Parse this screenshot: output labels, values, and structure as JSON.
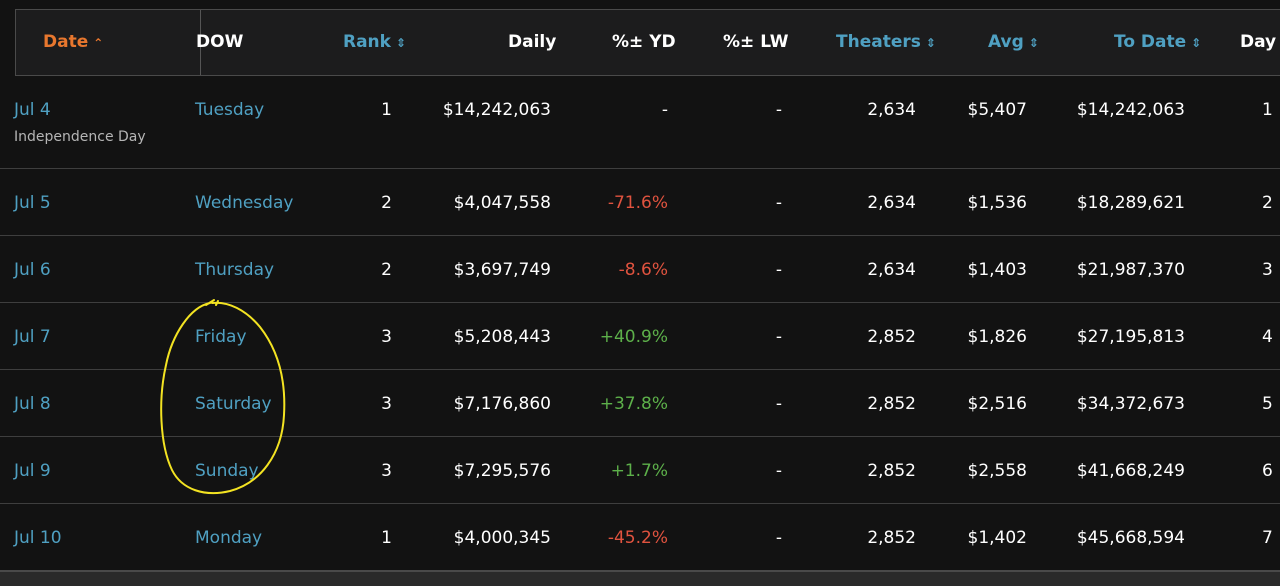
{
  "header": {
    "date": "Date",
    "dow": "DOW",
    "rank": "Rank",
    "daily": "Daily",
    "pct_yd": "%± YD",
    "pct_lw": "%± LW",
    "theaters": "Theaters",
    "avg": "Avg",
    "to_date": "To Date",
    "day": "Day",
    "sort_up_icon": "⌃",
    "sort_both_icon": "⇕"
  },
  "rows": [
    {
      "date": "Jul 4",
      "holiday": "Independence Day",
      "dow": "Tuesday",
      "rank": "1",
      "daily": "$14,242,063",
      "yd": "-",
      "lw": "-",
      "theaters": "2,634",
      "avg": "$5,407",
      "to_date": "$14,242,063",
      "day": "1"
    },
    {
      "date": "Jul 5",
      "holiday": "",
      "dow": "Wednesday",
      "rank": "2",
      "daily": "$4,047,558",
      "yd": "-71.6%",
      "lw": "-",
      "theaters": "2,634",
      "avg": "$1,536",
      "to_date": "$18,289,621",
      "day": "2"
    },
    {
      "date": "Jul 6",
      "holiday": "",
      "dow": "Thursday",
      "rank": "2",
      "daily": "$3,697,749",
      "yd": "-8.6%",
      "lw": "-",
      "theaters": "2,634",
      "avg": "$1,403",
      "to_date": "$21,987,370",
      "day": "3"
    },
    {
      "date": "Jul 7",
      "holiday": "",
      "dow": "Friday",
      "rank": "3",
      "daily": "$5,208,443",
      "yd": "+40.9%",
      "lw": "-",
      "theaters": "2,852",
      "avg": "$1,826",
      "to_date": "$27,195,813",
      "day": "4"
    },
    {
      "date": "Jul 8",
      "holiday": "",
      "dow": "Saturday",
      "rank": "3",
      "daily": "$7,176,860",
      "yd": "+37.8%",
      "lw": "-",
      "theaters": "2,852",
      "avg": "$2,516",
      "to_date": "$34,372,673",
      "day": "5"
    },
    {
      "date": "Jul 9",
      "holiday": "",
      "dow": "Sunday",
      "rank": "3",
      "daily": "$7,295,576",
      "yd": "+1.7%",
      "lw": "-",
      "theaters": "2,852",
      "avg": "$2,558",
      "to_date": "$41,668,249",
      "day": "6"
    },
    {
      "date": "Jul 10",
      "holiday": "",
      "dow": "Monday",
      "rank": "1",
      "daily": "$4,000,345",
      "yd": "-45.2%",
      "lw": "-",
      "theaters": "2,852",
      "avg": "$1,402",
      "to_date": "$45,668,594",
      "day": "7"
    }
  ],
  "colors": {
    "background": "#121212",
    "link": "#4fa0c2",
    "active_sort": "#e8772e",
    "negative": "#e0533f",
    "positive": "#5db04a",
    "annotation": "#f3e322"
  }
}
